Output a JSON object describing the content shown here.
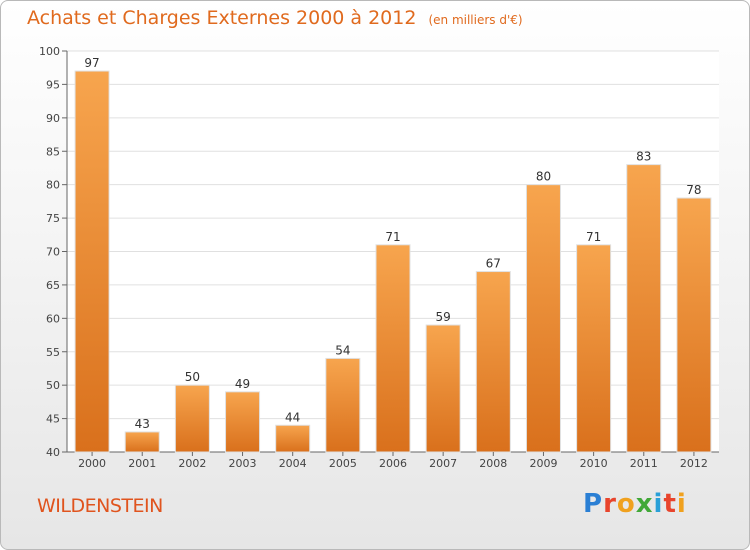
{
  "header": {
    "title": "Achats et Charges Externes 2000 à 2012",
    "subtitle": "(en milliers d'€)"
  },
  "footer": {
    "commune": "WILDENSTEIN",
    "logo_text": "Proxiti"
  },
  "colors": {
    "bar_light": "#f7a54e",
    "bar_dark": "#d9701c",
    "title": "#e06a1e",
    "grid": "#e0e0e0"
  },
  "chart_data": {
    "type": "bar",
    "title": "Achats et Charges Externes 2000 à 2012",
    "subtitle": "(en milliers d'€)",
    "categories": [
      "2000",
      "2001",
      "2002",
      "2003",
      "2004",
      "2005",
      "2006",
      "2007",
      "2008",
      "2009",
      "2010",
      "2011",
      "2012"
    ],
    "values": [
      97,
      43,
      50,
      49,
      44,
      54,
      71,
      59,
      67,
      80,
      71,
      83,
      78
    ],
    "ylim": [
      40,
      100
    ],
    "yticks": [
      40,
      45,
      50,
      55,
      60,
      65,
      70,
      75,
      80,
      85,
      90,
      95,
      100
    ],
    "grid": true,
    "legend": "none"
  }
}
